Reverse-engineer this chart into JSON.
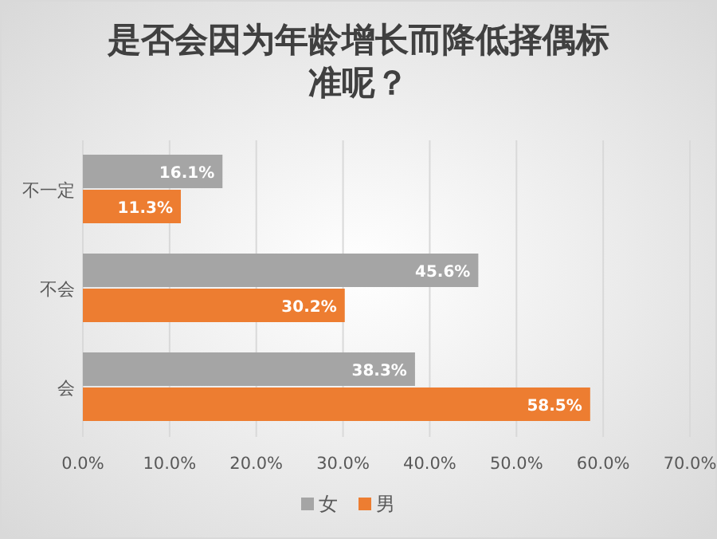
{
  "chart_data": {
    "type": "bar",
    "orientation": "horizontal",
    "title": "是否会因为年龄增长而降低择偶标准呢？",
    "categories": [
      "不一定",
      "不会",
      "会"
    ],
    "series": [
      {
        "name": "女",
        "color": "#a5a5a5",
        "values": [
          16.1,
          45.6,
          38.3
        ],
        "value_labels": [
          "16.1%",
          "45.6%",
          "38.3%"
        ]
      },
      {
        "name": "男",
        "color": "#ed7d31",
        "values": [
          11.3,
          30.2,
          58.5
        ],
        "value_labels": [
          "11.3%",
          "30.2%",
          "58.5%"
        ]
      }
    ],
    "xlim": [
      0,
      70
    ],
    "xticks": [
      {
        "value": 0,
        "label": "0.0%"
      },
      {
        "value": 10,
        "label": "10.0%"
      },
      {
        "value": 20,
        "label": "20.0%"
      },
      {
        "value": 30,
        "label": "30.0%"
      },
      {
        "value": 40,
        "label": "40.0%"
      },
      {
        "value": 50,
        "label": "50.0%"
      },
      {
        "value": 60,
        "label": "60.0%"
      },
      {
        "value": 70,
        "label": "70.0%"
      }
    ],
    "grid": "x",
    "legend": "bottom"
  }
}
